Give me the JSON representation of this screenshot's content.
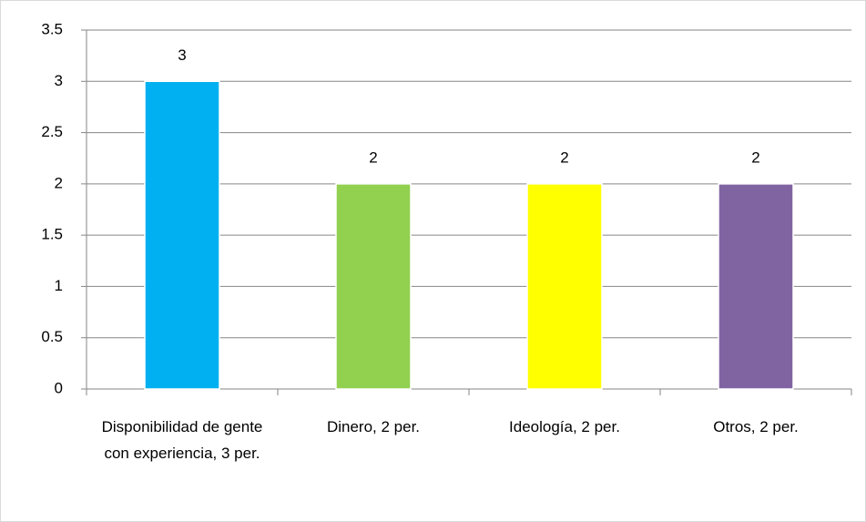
{
  "chart_data": {
    "type": "bar",
    "categories": [
      "Disponibilidad de gente con experiencia, 3 per.",
      "Dinero, 2 per.",
      "Ideología, 2 per.",
      "Otros, 2 per."
    ],
    "values": [
      3,
      2,
      2,
      2
    ],
    "colors": [
      "#00b0f0",
      "#92d050",
      "#ffff00",
      "#8064a2"
    ],
    "ylim": [
      0,
      3.5
    ],
    "yticks": [
      0,
      0.5,
      1,
      1.5,
      2,
      2.5,
      3,
      3.5
    ],
    "grid": true
  }
}
